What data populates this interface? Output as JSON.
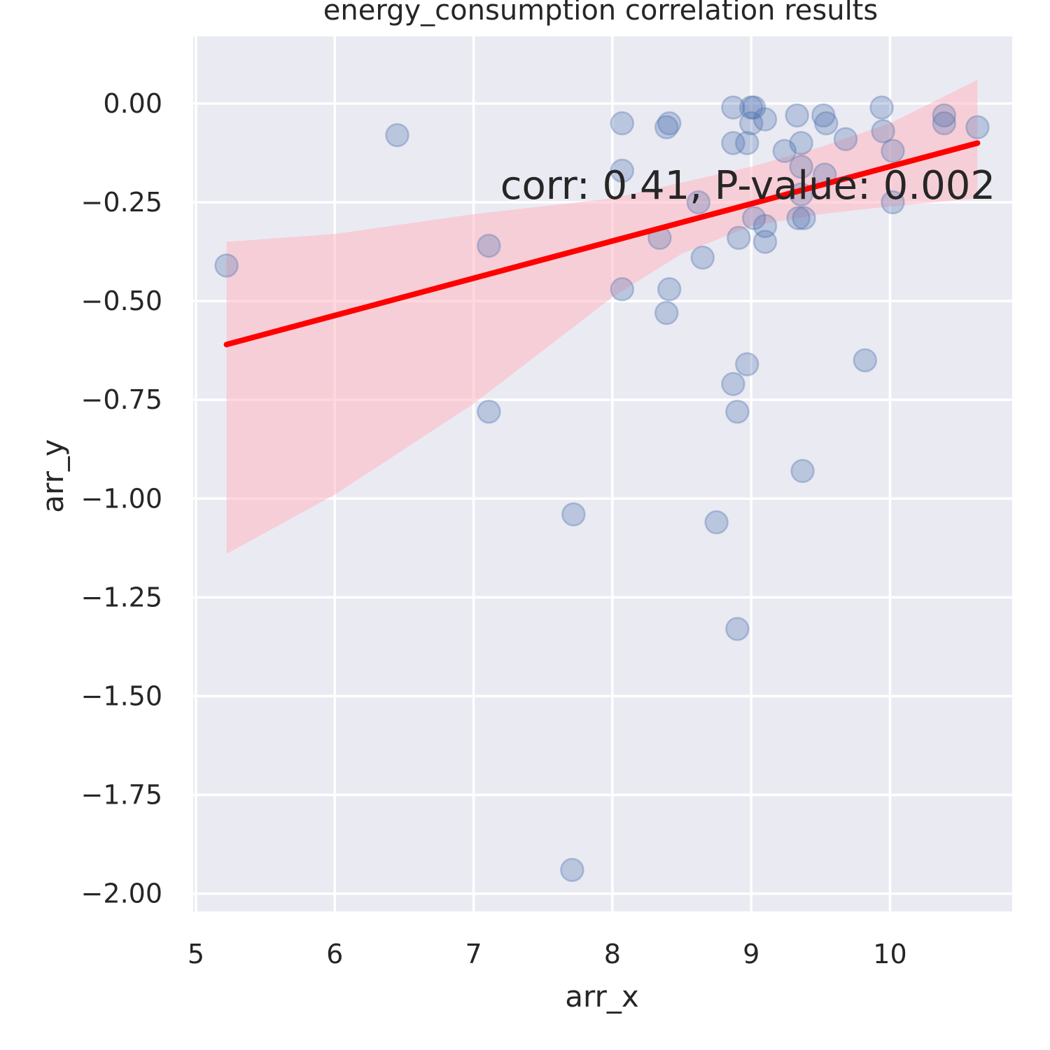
{
  "chart_data": {
    "type": "scatter",
    "title": "energy_consumption correlation results",
    "xlabel": "arr_x",
    "ylabel": "arr_y",
    "xlim": [
      4.98,
      10.88
    ],
    "ylim": [
      -2.045,
      0.17
    ],
    "xticks": [
      5,
      6,
      7,
      8,
      9,
      10
    ],
    "yticks": [
      0.0,
      -0.25,
      -0.5,
      -0.75,
      -1.0,
      -1.25,
      -1.5,
      -1.75,
      -2.0
    ],
    "xtick_labels": [
      "5",
      "6",
      "7",
      "8",
      "9",
      "10"
    ],
    "ytick_labels": [
      "0.00",
      "−0.25",
      "−0.50",
      "−0.75",
      "−1.00",
      "−1.25",
      "−1.50",
      "−1.75",
      "−2.00"
    ],
    "grid": true,
    "annotation": "corr: 0.41, P-value: 0.002",
    "points": [
      [
        5.22,
        -0.41
      ],
      [
        6.45,
        -0.08
      ],
      [
        7.11,
        -0.36
      ],
      [
        7.11,
        -0.78
      ],
      [
        7.72,
        -1.04
      ],
      [
        7.71,
        -1.94
      ],
      [
        8.07,
        -0.05
      ],
      [
        8.07,
        -0.17
      ],
      [
        8.07,
        -0.47
      ],
      [
        8.34,
        -0.34
      ],
      [
        8.39,
        -0.06
      ],
      [
        8.41,
        -0.05
      ],
      [
        8.41,
        -0.47
      ],
      [
        8.39,
        -0.53
      ],
      [
        8.62,
        -0.25
      ],
      [
        8.65,
        -0.39
      ],
      [
        8.75,
        -1.06
      ],
      [
        8.87,
        -0.01
      ],
      [
        8.87,
        -0.1
      ],
      [
        8.87,
        -0.71
      ],
      [
        8.91,
        -0.34
      ],
      [
        8.9,
        -0.78
      ],
      [
        8.9,
        -1.33
      ],
      [
        8.97,
        -0.1
      ],
      [
        8.97,
        -0.66
      ],
      [
        9.0,
        -0.01
      ],
      [
        9.02,
        -0.01
      ],
      [
        9.0,
        -0.05
      ],
      [
        9.1,
        -0.04
      ],
      [
        9.02,
        -0.29
      ],
      [
        9.1,
        -0.31
      ],
      [
        9.1,
        -0.35
      ],
      [
        9.24,
        -0.12
      ],
      [
        9.33,
        -0.03
      ],
      [
        9.34,
        -0.29
      ],
      [
        9.36,
        -0.1
      ],
      [
        9.36,
        -0.16
      ],
      [
        9.36,
        -0.23
      ],
      [
        9.38,
        -0.29
      ],
      [
        9.37,
        -0.93
      ],
      [
        9.52,
        -0.03
      ],
      [
        9.54,
        -0.05
      ],
      [
        9.53,
        -0.18
      ],
      [
        9.68,
        -0.09
      ],
      [
        9.82,
        -0.65
      ],
      [
        9.94,
        -0.01
      ],
      [
        9.95,
        -0.07
      ],
      [
        10.02,
        -0.12
      ],
      [
        10.02,
        -0.25
      ],
      [
        10.39,
        -0.03
      ],
      [
        10.39,
        -0.05
      ],
      [
        10.63,
        -0.06
      ]
    ],
    "regression_line": {
      "x": [
        5.22,
        10.63
      ],
      "y": [
        -0.61,
        -0.1
      ]
    },
    "confidence_band": {
      "x": [
        5.22,
        6.0,
        7.0,
        8.0,
        8.5,
        9.0,
        9.5,
        10.0,
        10.63
      ],
      "upper": [
        -0.35,
        -0.33,
        -0.28,
        -0.24,
        -0.2,
        -0.16,
        -0.11,
        -0.05,
        0.06
      ],
      "lower": [
        -1.14,
        -0.99,
        -0.76,
        -0.49,
        -0.38,
        -0.31,
        -0.28,
        -0.26,
        -0.24
      ]
    },
    "colors": {
      "background": "#eaeaf2",
      "grid": "#ffffff",
      "points": "#4c72b0",
      "line": "#ff0000",
      "band": "#ffb6c1"
    }
  }
}
